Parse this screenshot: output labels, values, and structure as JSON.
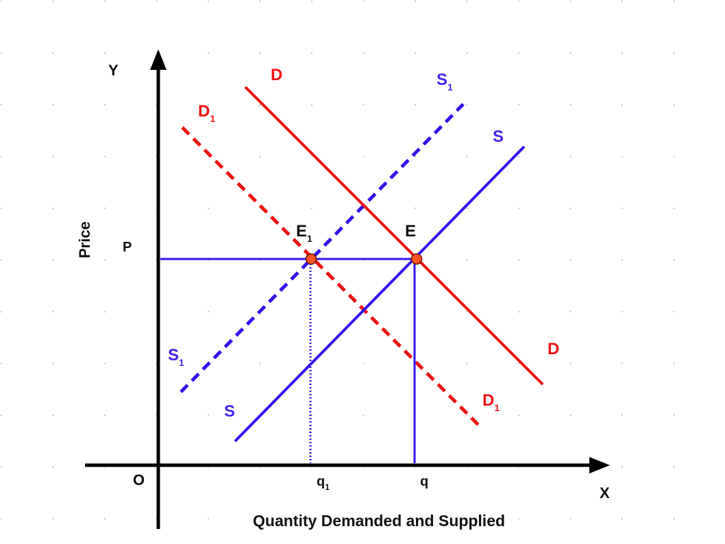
{
  "colors": {
    "demand": "#ee1111",
    "supply": "#3311ee",
    "axis": "#000000",
    "point_fill": "#ff5522",
    "grid_dot": "#999999"
  },
  "axes": {
    "y_label": "Y",
    "x_label": "X",
    "origin_label": "O",
    "price_label": "Price",
    "quantity_label": "Quantity Demanded and Supplied"
  },
  "levels": {
    "p_label": "P",
    "q_label": "q",
    "q1_label": "q",
    "q1_sub": "1"
  },
  "curves": {
    "d_top": "D",
    "d_bottom": "D",
    "d1_top": "D",
    "d1_top_sub": "1",
    "d1_bottom": "D",
    "d1_bottom_sub": "1",
    "s_top": "S",
    "s_bottom": "S",
    "s1_top": "S",
    "s1_top_sub": "1",
    "s1_bottom": "S",
    "s1_bottom_sub": "1"
  },
  "points": {
    "e_label": "E",
    "e1_label": "E",
    "e1_sub": "1"
  }
}
